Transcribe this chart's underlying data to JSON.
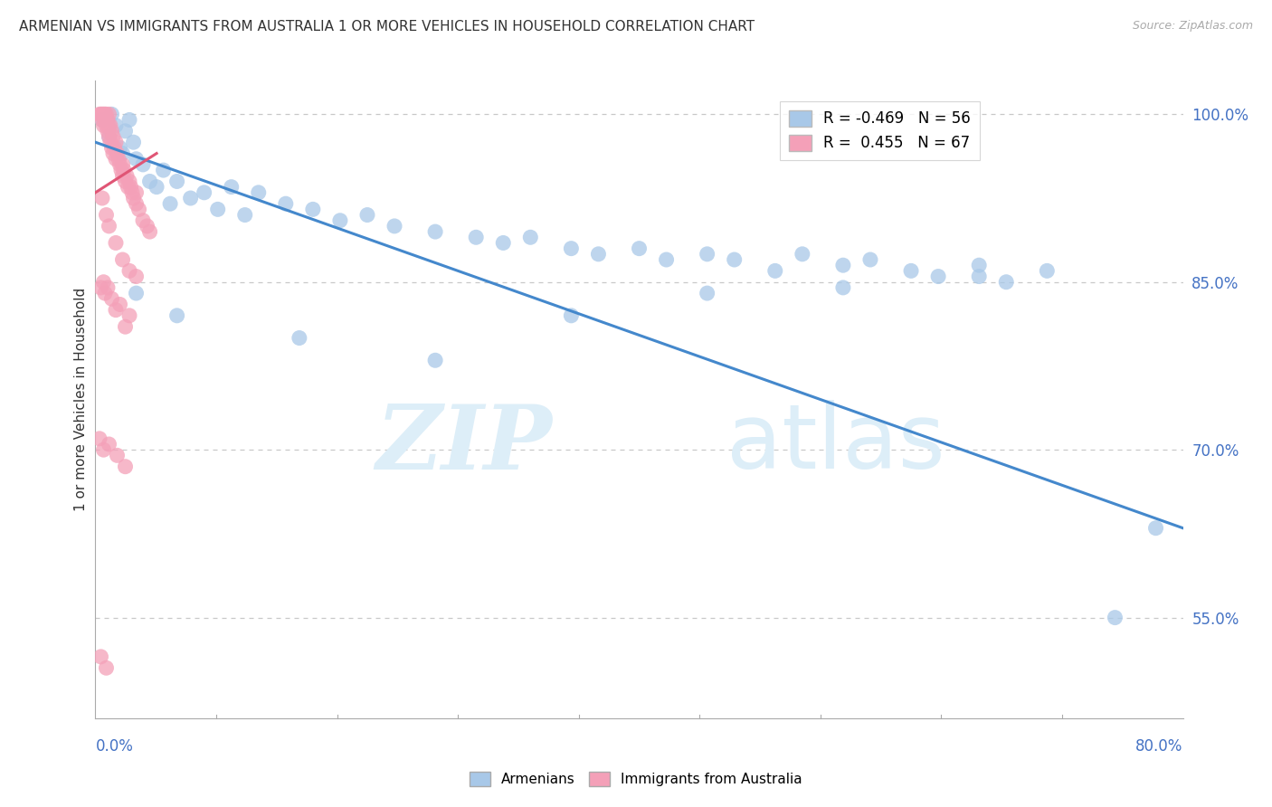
{
  "title": "ARMENIAN VS IMMIGRANTS FROM AUSTRALIA 1 OR MORE VEHICLES IN HOUSEHOLD CORRELATION CHART",
  "source": "Source: ZipAtlas.com",
  "ylabel": "1 or more Vehicles in Household",
  "watermark_zip": "ZIP",
  "watermark_atlas": "atlas",
  "x_min": 0.0,
  "x_max": 80.0,
  "y_min": 46.0,
  "y_max": 103.0,
  "right_yticks": [
    55.0,
    70.0,
    85.0,
    100.0
  ],
  "grid_color": "#c8c8c8",
  "background_color": "#ffffff",
  "blue_color": "#a8c8e8",
  "pink_color": "#f4a0b8",
  "blue_line_color": "#4488cc",
  "pink_line_color": "#e05575",
  "legend_R_blue": "-0.469",
  "legend_N_blue": "56",
  "legend_R_pink": "0.455",
  "legend_N_pink": "67",
  "armenians_x": [
    0.5,
    1.0,
    1.2,
    1.5,
    1.8,
    2.0,
    2.2,
    2.5,
    2.8,
    3.0,
    3.5,
    4.0,
    4.5,
    5.0,
    5.5,
    6.0,
    7.0,
    8.0,
    9.0,
    10.0,
    11.0,
    12.0,
    14.0,
    16.0,
    18.0,
    20.0,
    22.0,
    25.0,
    28.0,
    30.0,
    32.0,
    35.0,
    37.0,
    40.0,
    42.0,
    45.0,
    47.0,
    50.0,
    52.0,
    55.0,
    57.0,
    60.0,
    62.0,
    65.0,
    67.0,
    70.0,
    3.0,
    6.0,
    15.0,
    25.0,
    35.0,
    45.0,
    55.0,
    65.0,
    75.0,
    78.0
  ],
  "armenians_y": [
    99.5,
    98.0,
    100.0,
    99.0,
    97.0,
    96.5,
    98.5,
    99.5,
    97.5,
    96.0,
    95.5,
    94.0,
    93.5,
    95.0,
    92.0,
    94.0,
    92.5,
    93.0,
    91.5,
    93.5,
    91.0,
    93.0,
    92.0,
    91.5,
    90.5,
    91.0,
    90.0,
    89.5,
    89.0,
    88.5,
    89.0,
    88.0,
    87.5,
    88.0,
    87.0,
    87.5,
    87.0,
    86.0,
    87.5,
    86.5,
    87.0,
    86.0,
    85.5,
    86.5,
    85.0,
    86.0,
    84.0,
    82.0,
    80.0,
    78.0,
    82.0,
    84.0,
    84.5,
    85.5,
    55.0,
    63.0
  ],
  "immigrants_x": [
    0.3,
    0.4,
    0.5,
    0.5,
    0.6,
    0.6,
    0.7,
    0.7,
    0.8,
    0.8,
    0.9,
    0.9,
    1.0,
    1.0,
    1.0,
    1.1,
    1.1,
    1.2,
    1.2,
    1.3,
    1.3,
    1.4,
    1.5,
    1.5,
    1.6,
    1.7,
    1.8,
    1.9,
    2.0,
    2.0,
    2.1,
    2.2,
    2.3,
    2.4,
    2.5,
    2.6,
    2.7,
    2.8,
    3.0,
    3.0,
    3.2,
    3.5,
    3.8,
    4.0,
    0.5,
    0.8,
    1.0,
    1.5,
    2.0,
    2.5,
    3.0,
    0.4,
    0.7,
    1.2,
    1.8,
    2.5,
    0.6,
    0.9,
    1.5,
    2.2,
    0.3,
    0.6,
    1.0,
    1.6,
    2.2,
    0.4,
    0.8
  ],
  "immigrants_y": [
    100.0,
    100.0,
    100.0,
    99.5,
    100.0,
    99.0,
    100.0,
    99.5,
    99.0,
    100.0,
    99.5,
    98.5,
    100.0,
    99.0,
    98.0,
    99.0,
    97.5,
    98.5,
    97.0,
    98.0,
    96.5,
    97.0,
    97.5,
    96.0,
    96.5,
    96.0,
    95.5,
    95.0,
    95.5,
    94.5,
    95.0,
    94.0,
    94.5,
    93.5,
    94.0,
    93.5,
    93.0,
    92.5,
    93.0,
    92.0,
    91.5,
    90.5,
    90.0,
    89.5,
    92.5,
    91.0,
    90.0,
    88.5,
    87.0,
    86.0,
    85.5,
    84.5,
    84.0,
    83.5,
    83.0,
    82.0,
    85.0,
    84.5,
    82.5,
    81.0,
    71.0,
    70.0,
    70.5,
    69.5,
    68.5,
    51.5,
    50.5
  ],
  "blue_trend_x0": 0.0,
  "blue_trend_y0": 97.5,
  "blue_trend_x1": 80.0,
  "blue_trend_y1": 63.0,
  "pink_trend_x0": 0.0,
  "pink_trend_y0": 93.0,
  "pink_trend_x1": 4.5,
  "pink_trend_y1": 96.5
}
